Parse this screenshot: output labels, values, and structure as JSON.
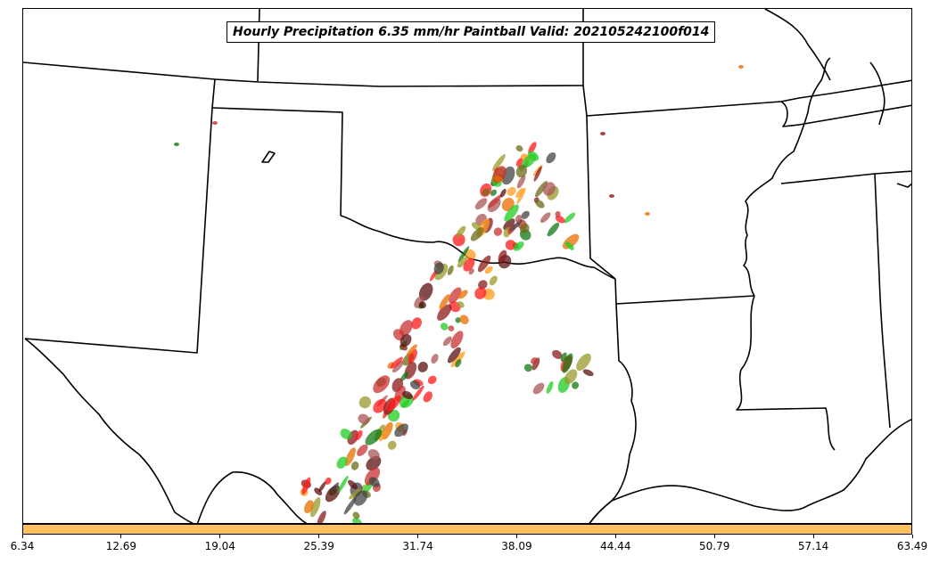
{
  "title": "Hourly Precipitation 6.35 mm/hr Paintball Valid: 202105242100f014",
  "colorbar": {
    "color": "#ffc060",
    "ticks": [
      "6.34",
      "12.69",
      "19.04",
      "25.39",
      "31.74",
      "38.09",
      "44.44",
      "50.79",
      "57.14",
      "63.49"
    ]
  },
  "member_colors": [
    "#c83232",
    "#ff1a1a",
    "#22cc22",
    "#117711",
    "#ff9a1a",
    "#e86e00",
    "#99992a",
    "#6b6b1a",
    "#8b1a1a",
    "#5a0f0f",
    "#444444",
    "#aa5555"
  ]
}
